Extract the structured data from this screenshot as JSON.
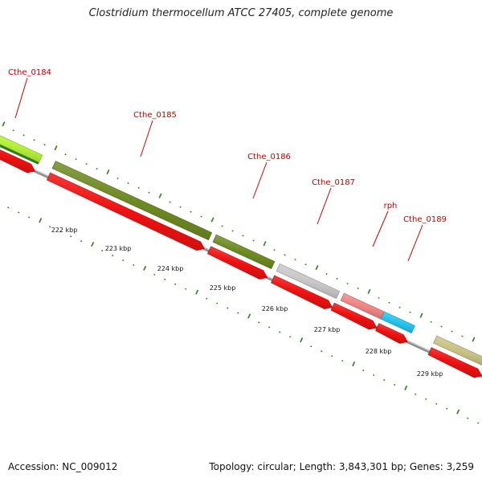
{
  "title": "Clostridium thermocellum ATCC 27405, complete genome",
  "footer": {
    "accession": "Accession: NC_009012",
    "summary": "Topology: circular; Length: 3,843,301 bp; Genes: 3,259"
  },
  "colors": {
    "backbone": "#8a8a8a",
    "cds": "#ee1111",
    "leader": "#cc0000",
    "tick": "#2e7d16",
    "label": "#c00000"
  },
  "genes": [
    {
      "label": "Cthe_0184",
      "color": "#b6f23c"
    },
    {
      "label": "Cthe_0185",
      "color": "#6f8a23"
    },
    {
      "label": "Cthe_0186",
      "color": "#6f8a23"
    },
    {
      "label": "Cthe_0187",
      "color": "#c8c8c8"
    },
    {
      "label": "rph",
      "color": "#ef8585"
    },
    {
      "label": "Cthe_0189",
      "color": "#22c4ee"
    },
    {
      "label": "",
      "color": "#c9c284"
    }
  ],
  "scale_labels": [
    "222 kbp",
    "223 kbp",
    "224 kbp",
    "225 kbp",
    "226 kbp",
    "227 kbp",
    "228 kbp",
    "229 kbp"
  ]
}
